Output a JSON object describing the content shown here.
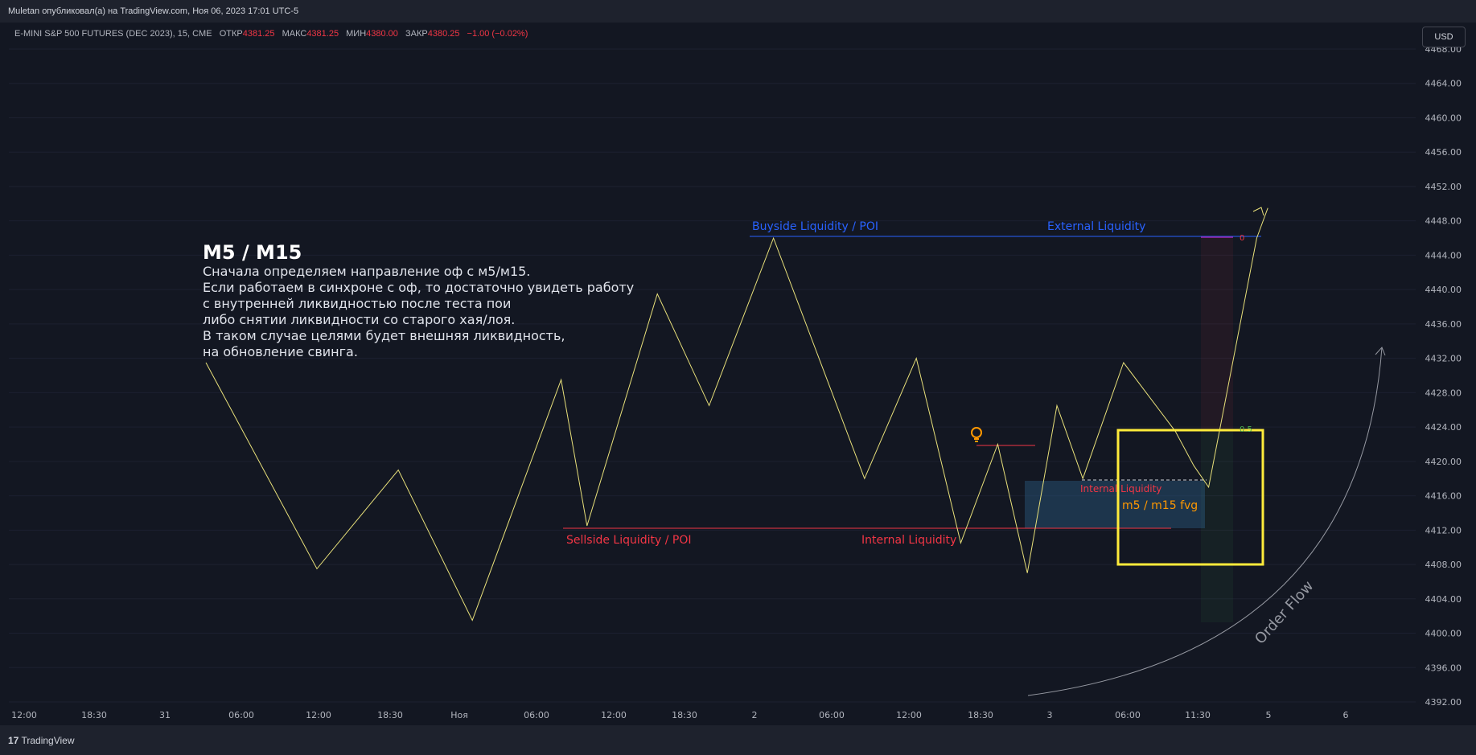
{
  "header": {
    "published": "Muletan опубликовал(а) на TradingView.com, Ноя 06, 2023 17:01 UTC-5"
  },
  "symbol": {
    "name": "E-MINI S&P 500 FUTURES (DEC 2023), 15, CME",
    "open_label": "ОТКР",
    "open": "4381.25",
    "high_label": "МАКС",
    "high": "4381.25",
    "low_label": "МИН",
    "low": "4380.00",
    "close_label": "ЗАКР",
    "close": "4380.25",
    "change": "−1.00 (−0.02%)"
  },
  "currency_button": "USD",
  "footer": {
    "brand": "TradingView"
  },
  "annotation": {
    "title": "M5 / M15",
    "lines": [
      "Сначала определяем направление оф с м5/м15.",
      "Если работаем в синхроне с оф, то достаточно увидеть работу",
      "с внутренней ликвидностью после теста пои",
      "либо снятии ликвидности со старого хая/лоя.",
      "В таком случае целями будет внешняя ликвидность,",
      "на обновление свинга."
    ]
  },
  "chart_data": {
    "type": "line",
    "price_axis": {
      "ticks": [
        4392,
        4396,
        4400,
        4404,
        4408,
        4412,
        4416,
        4420,
        4424,
        4428,
        4432,
        4436,
        4440,
        4444,
        4448,
        4452,
        4456,
        4460,
        4464,
        4468
      ],
      "range": [
        4392,
        4468
      ]
    },
    "time_axis": {
      "ticks": [
        "12:00",
        "18:30",
        "31",
        "06:00",
        "12:00",
        "18:30",
        "Ноя",
        "06:00",
        "12:00",
        "18:30",
        "2",
        "06:00",
        "12:00",
        "18:30",
        "3",
        "06:00",
        "11:30",
        "5",
        "6"
      ]
    },
    "series": [
      {
        "color": "#e8e07a",
        "points": [
          [
            0,
            4431.5
          ],
          [
            1.5,
            4407.5
          ],
          [
            2.6,
            4419
          ],
          [
            3.6,
            4401.5
          ],
          [
            4.8,
            4429.5
          ],
          [
            5.15,
            4412.5
          ],
          [
            6.1,
            4439.5
          ],
          [
            6.8,
            4426.5
          ],
          [
            7.67,
            4446
          ],
          [
            8.9,
            4418
          ],
          [
            9.6,
            4432
          ],
          [
            10.2,
            4410.5
          ],
          [
            10.7,
            4422
          ],
          [
            11.1,
            4407
          ],
          [
            11.5,
            4426.5
          ],
          [
            11.85,
            4418
          ],
          [
            12.4,
            4431.5
          ],
          [
            13.1,
            4423.5
          ],
          [
            13.35,
            4419.5
          ],
          [
            13.55,
            4417
          ],
          [
            14.2,
            4446
          ],
          [
            14.35,
            4449.5
          ]
        ]
      }
    ],
    "levels": [
      {
        "label": "Buyside Liquidity / POI",
        "price": 4446,
        "color": "#2962ff"
      },
      {
        "label": "External Liquidity",
        "price": 4446,
        "color": "#2962ff"
      },
      {
        "label": "Sellside Liquidity / POI",
        "price": 4412.5,
        "color": "#f23645"
      },
      {
        "label": "Internal Liquidity",
        "price": 4412.5,
        "color": "#f23645"
      },
      {
        "label": "Internal Liquidity",
        "price": 4418,
        "color": "#f23645"
      }
    ],
    "zone_label": "m5 / m15 fvg",
    "fib_labels": [
      "0",
      "0.5"
    ],
    "order_flow_label": "Order Flow",
    "colors": {
      "background": "#131722",
      "line": "#e8e07a",
      "buyside": "#2962ff",
      "sellside": "#f23645",
      "fvg_box": "#ffeb3b",
      "fvg_text": "#ff9800"
    }
  }
}
